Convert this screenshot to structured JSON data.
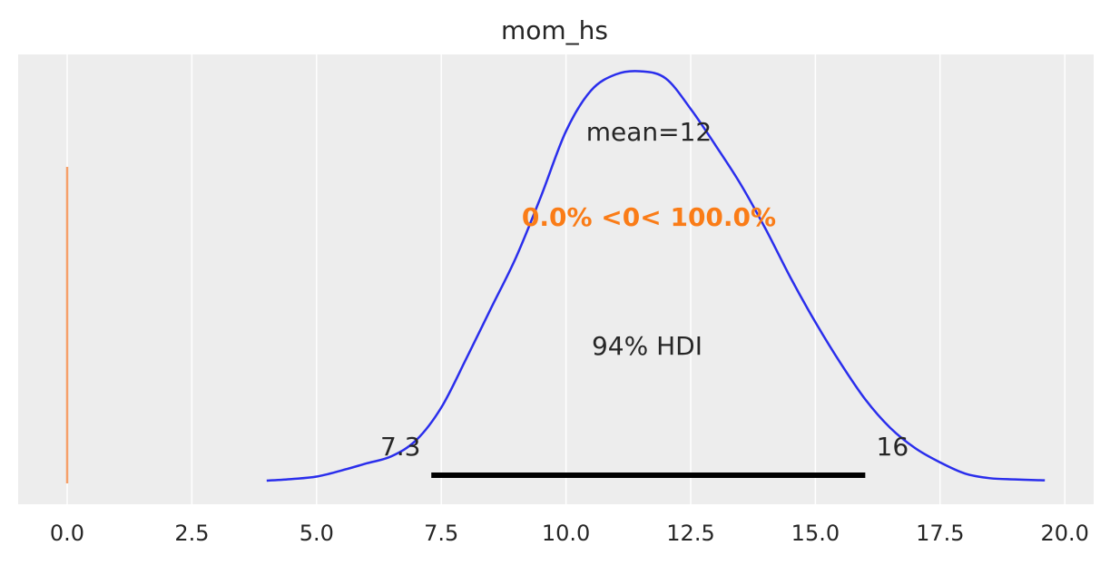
{
  "chart_data": {
    "type": "area",
    "title": "mom_hs",
    "xlabel": "",
    "ylabel": "",
    "xlim": [
      -1.0,
      20.4
    ],
    "ylim": [
      0.0,
      0.237
    ],
    "x_ticks": [
      0.0,
      2.5,
      5.0,
      7.5,
      10.0,
      12.5,
      15.0,
      17.5,
      20.0
    ],
    "x_tick_labels": [
      "0.0",
      "2.5",
      "5.0",
      "7.5",
      "10.0",
      "12.5",
      "15.0",
      "17.5",
      "20.0"
    ],
    "grid": true,
    "legend": "none",
    "density": {
      "x": [
        4.0,
        4.5,
        5.0,
        5.5,
        6.0,
        6.5,
        7.0,
        7.5,
        8.0,
        8.5,
        9.0,
        9.5,
        10.0,
        10.5,
        11.0,
        11.5,
        12.0,
        12.5,
        13.0,
        13.5,
        14.0,
        14.5,
        15.0,
        15.5,
        16.0,
        16.5,
        17.0,
        17.5,
        18.0,
        18.5,
        19.0,
        19.5,
        19.6
      ],
      "y": [
        0.0,
        0.0008,
        0.002,
        0.005,
        0.0085,
        0.012,
        0.02,
        0.036,
        0.06,
        0.085,
        0.11,
        0.14,
        0.172,
        0.192,
        0.2,
        0.2015,
        0.198,
        0.183,
        0.165,
        0.146,
        0.124,
        0.1,
        0.078,
        0.058,
        0.04,
        0.026,
        0.016,
        0.009,
        0.0035,
        0.0012,
        0.0006,
        0.0002,
        0.0002
      ]
    },
    "mean_label": "mean=12",
    "hdi": {
      "label": "94% HDI",
      "low": 7.3,
      "high": 16.0,
      "low_label": "7.3",
      "high_label": "16"
    },
    "reference": {
      "value": 0.0,
      "label": "0.0% <0< 100.0%"
    },
    "colors": {
      "density": "#2a2eec",
      "reference": "#fa7c17",
      "ref_line": "#f6a06a",
      "hdi": "#000000",
      "background": "#ededed",
      "grid": "#ffffff"
    }
  }
}
